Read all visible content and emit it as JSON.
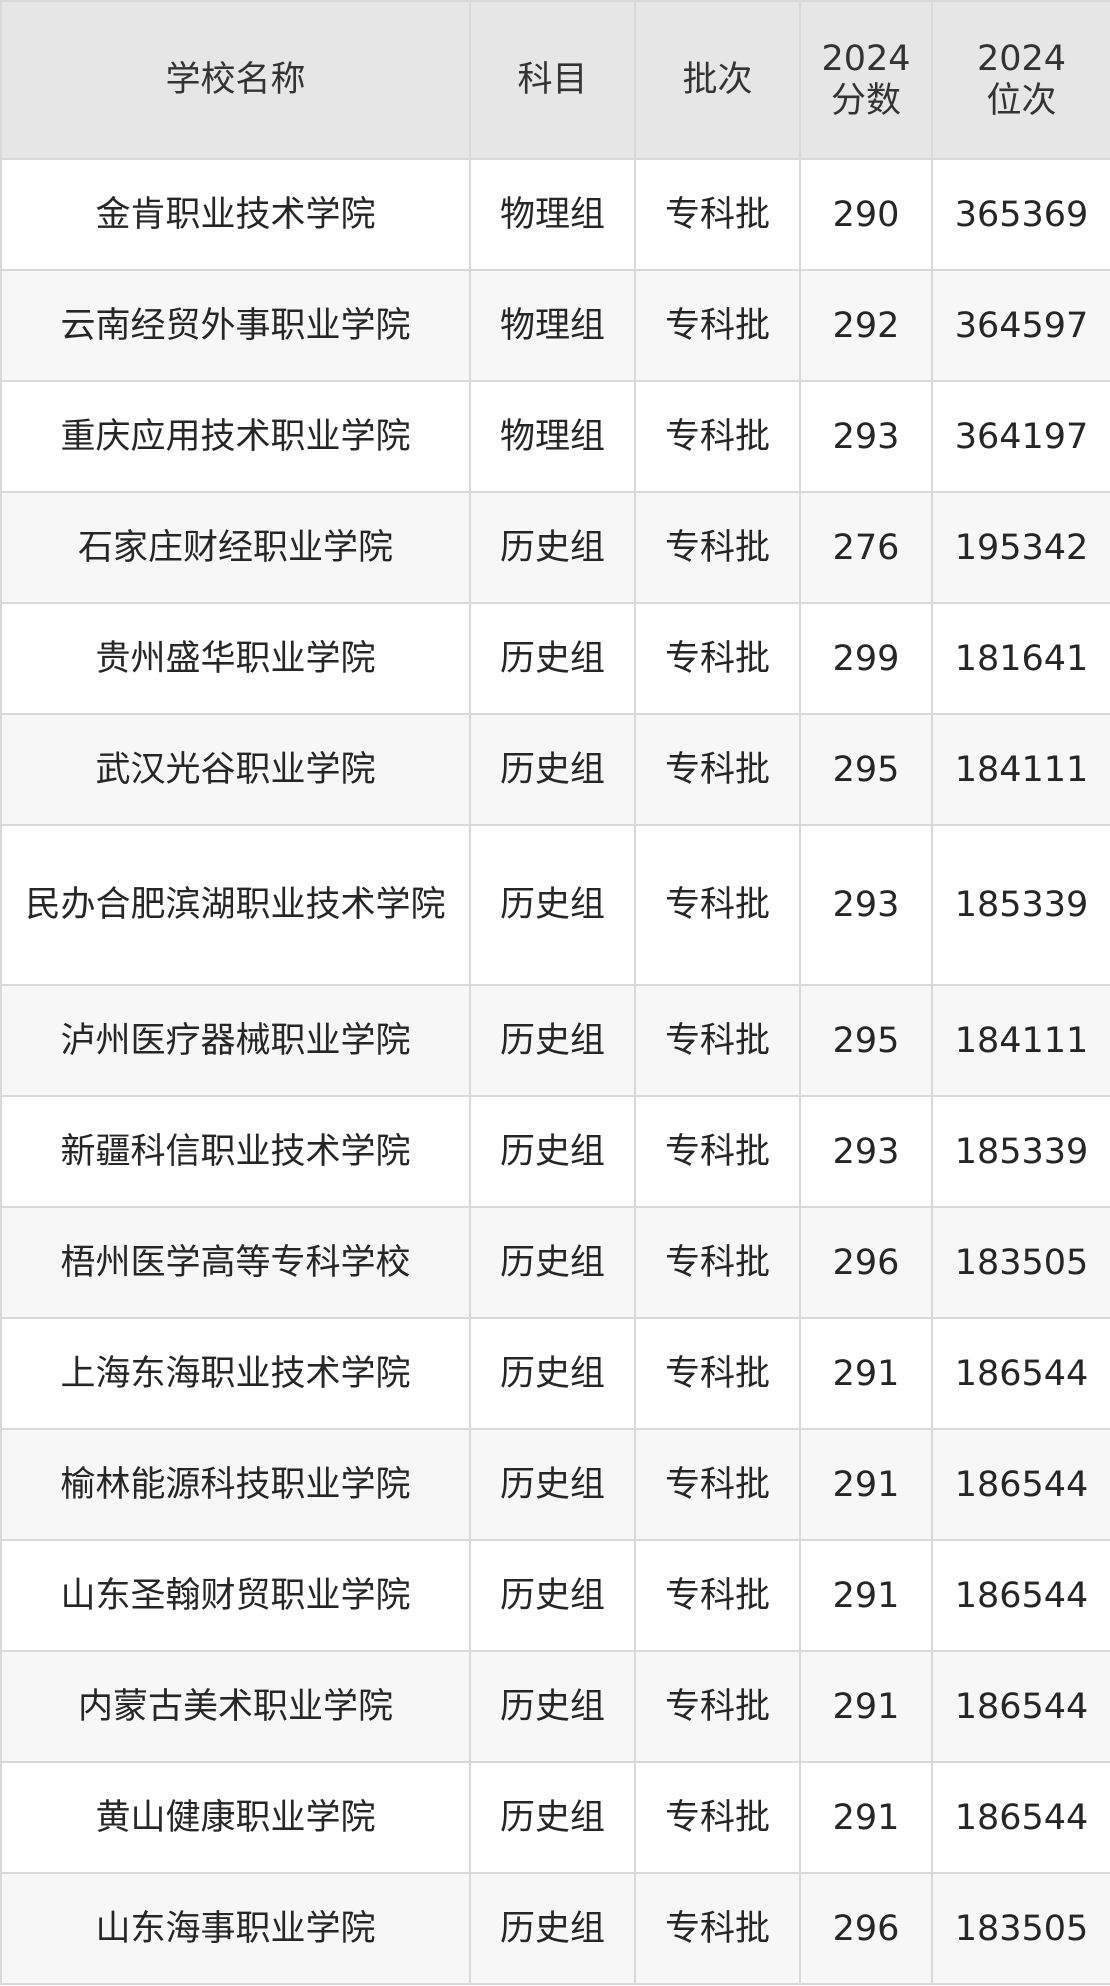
{
  "table": {
    "headers": [
      "学校名称",
      "科目",
      "批次",
      "2024\n分数",
      "2024\n位次"
    ],
    "rows": [
      [
        "金肯职业技术学院",
        "物理组",
        "专科批",
        "290",
        "365369"
      ],
      [
        "云南经贸外事职业学院",
        "物理组",
        "专科批",
        "292",
        "364597"
      ],
      [
        "重庆应用技术职业学院",
        "物理组",
        "专科批",
        "293",
        "364197"
      ],
      [
        "石家庄财经职业学院",
        "历史组",
        "专科批",
        "276",
        "195342"
      ],
      [
        "贵州盛华职业学院",
        "历史组",
        "专科批",
        "299",
        "181641"
      ],
      [
        "武汉光谷职业学院",
        "历史组",
        "专科批",
        "295",
        "184111"
      ],
      [
        "民办合肥滨湖职业技术学院",
        "历史组",
        "专科批",
        "293",
        "185339"
      ],
      [
        "泸州医疗器械职业学院",
        "历史组",
        "专科批",
        "295",
        "184111"
      ],
      [
        "新疆科信职业技术学院",
        "历史组",
        "专科批",
        "293",
        "185339"
      ],
      [
        "梧州医学高等专科学校",
        "历史组",
        "专科批",
        "296",
        "183505"
      ],
      [
        "上海东海职业技术学院",
        "历史组",
        "专科批",
        "291",
        "186544"
      ],
      [
        "榆林能源科技职业学院",
        "历史组",
        "专科批",
        "291",
        "186544"
      ],
      [
        "山东圣翰财贸职业学院",
        "历史组",
        "专科批",
        "291",
        "186544"
      ],
      [
        "内蒙古美术职业学院",
        "历史组",
        "专科批",
        "291",
        "186544"
      ],
      [
        "黄山健康职业学院",
        "历史组",
        "专科批",
        "291",
        "186544"
      ],
      [
        "山东海事职业学院",
        "历史组",
        "专科批",
        "296",
        "183505"
      ]
    ]
  },
  "colors": {
    "header_bg": "#e6e6e6",
    "row_alt_bg": "#f7f7f7",
    "border": "#d9d9d9",
    "text": "#262626"
  }
}
